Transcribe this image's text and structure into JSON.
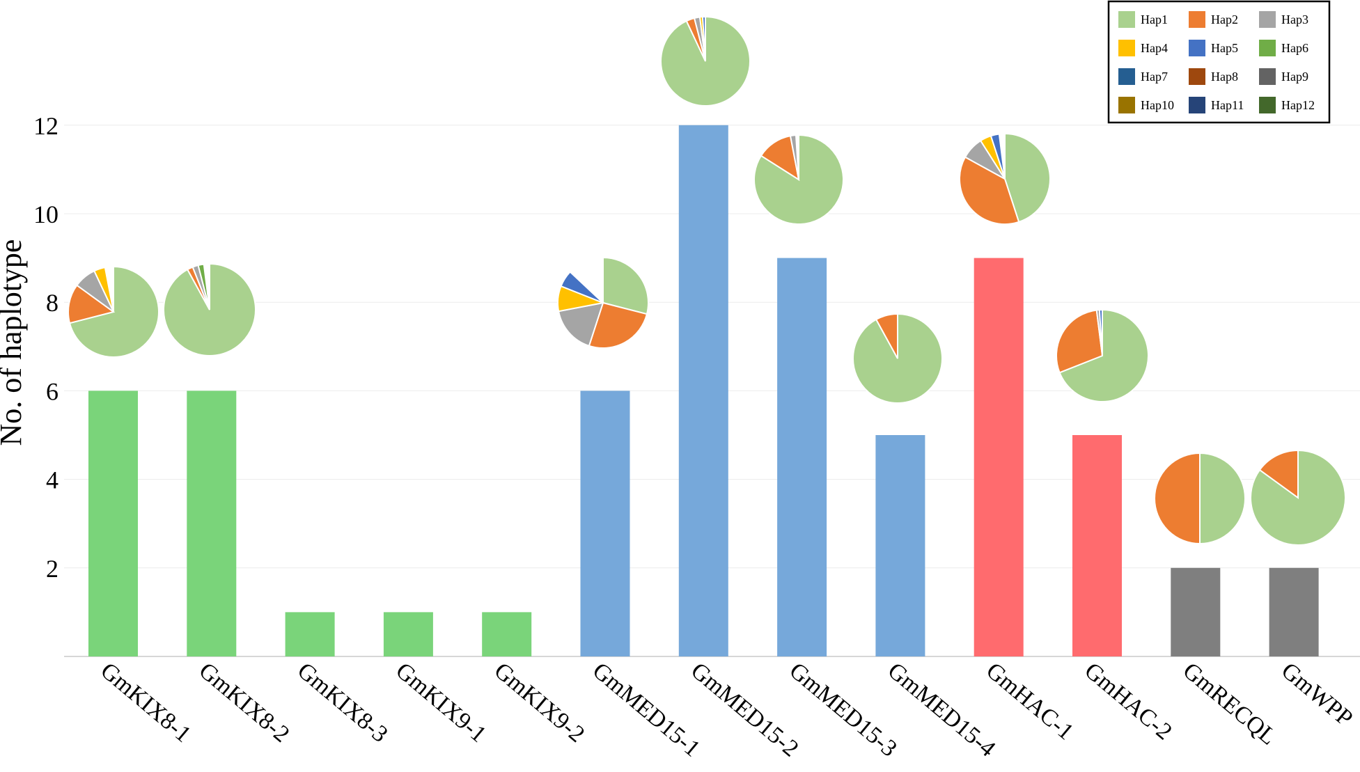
{
  "chart_data": {
    "type": "bar",
    "ylabel": "No. of haplotype",
    "ylim": [
      0,
      12
    ],
    "yticks": [
      2,
      4,
      6,
      8,
      10,
      12
    ],
    "grid": true,
    "legend_position": "top-right",
    "categories": [
      "GmKIX8-1",
      "GmKIX8-2",
      "GmKIX8-3",
      "GmKIX9-1",
      "GmKIX9-2",
      "GmMED15-1",
      "GmMED15-2",
      "GmMED15-3",
      "GmMED15-4",
      "GmHAC-1",
      "GmHAC-2",
      "GmRECQL",
      "GmWPP"
    ],
    "values": [
      6,
      6,
      1,
      1,
      1,
      6,
      12,
      9,
      5,
      9,
      5,
      2,
      2
    ],
    "bar_colors": [
      "#7ad47a",
      "#7ad47a",
      "#7ad47a",
      "#7ad47a",
      "#7ad47a",
      "#76a8da",
      "#76a8da",
      "#76a8da",
      "#76a8da",
      "#ff6b6e",
      "#ff6b6e",
      "#7f7f7f",
      "#7f7f7f"
    ],
    "haplotypes": [
      {
        "name": "Hap1",
        "color": "#a9d18e"
      },
      {
        "name": "Hap2",
        "color": "#ed7d31"
      },
      {
        "name": "Hap3",
        "color": "#a5a5a5"
      },
      {
        "name": "Hap4",
        "color": "#ffc000"
      },
      {
        "name": "Hap5",
        "color": "#4472c4"
      },
      {
        "name": "Hap6",
        "color": "#70ad47"
      },
      {
        "name": "Hap7",
        "color": "#255e91"
      },
      {
        "name": "Hap8",
        "color": "#9e480e"
      },
      {
        "name": "Hap9",
        "color": "#636363"
      },
      {
        "name": "Hap10",
        "color": "#997300"
      },
      {
        "name": "Hap11",
        "color": "#264478"
      },
      {
        "name": "Hap12",
        "color": "#43682b"
      }
    ],
    "pies": [
      {
        "category": "GmKIX8-1",
        "shares": [
          0.71,
          0.14,
          0.08,
          0.04
        ]
      },
      {
        "category": "GmKIX8-2",
        "shares": [
          0.92,
          0.02,
          0.02,
          0,
          0,
          0.02
        ]
      },
      {
        "category": "GmMED15-1",
        "shares": [
          0.29,
          0.26,
          0.17,
          0.09,
          0.06
        ]
      },
      {
        "category": "GmMED15-2",
        "shares": [
          0.93,
          0.03,
          0.02,
          0.01,
          0.01
        ]
      },
      {
        "category": "GmMED15-3",
        "shares": [
          0.84,
          0.13,
          0.02
        ]
      },
      {
        "category": "GmMED15-4",
        "shares": [
          0.92,
          0.08
        ]
      },
      {
        "category": "GmHAC-1",
        "shares": [
          0.45,
          0.38,
          0.08,
          0.04,
          0.03
        ]
      },
      {
        "category": "GmHAC-2",
        "shares": [
          0.69,
          0.29,
          0.01,
          0,
          0.01
        ]
      },
      {
        "category": "GmRECQL",
        "shares": [
          0.5,
          0.5
        ]
      },
      {
        "category": "GmWPP",
        "shares": [
          0.85,
          0.15
        ]
      }
    ]
  }
}
